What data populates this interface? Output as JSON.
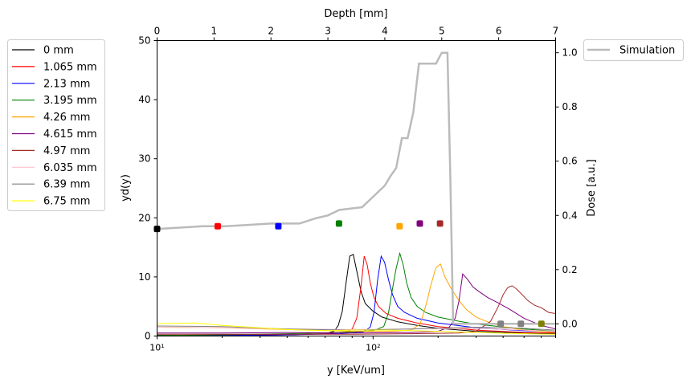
{
  "chart_data": {
    "type": "line",
    "title": "",
    "xlabel": "y [KeV/um]",
    "ylabel": "yd(y)",
    "x_scale": "log",
    "xlim": [
      10,
      700
    ],
    "ylim": [
      0,
      50
    ],
    "x_ticks": [
      10,
      100
    ],
    "x_tick_labels": [
      "10¹",
      "10²"
    ],
    "y_ticks": [
      0,
      10,
      20,
      30,
      40,
      50
    ],
    "top_xlabel": "Depth [mm]",
    "top_xlim": [
      0,
      7
    ],
    "top_ticks": [
      0,
      1,
      2,
      3,
      4,
      5,
      6,
      7
    ],
    "right_ylabel": "Dose [a.u.]",
    "right_ylim": [
      -0.045,
      1.045
    ],
    "right_ticks": [
      0.0,
      0.2,
      0.4,
      0.6,
      0.8,
      1.0
    ],
    "right_tick_labels": [
      "0.0",
      "0.2",
      "0.4",
      "0.6",
      "0.8",
      "1.0"
    ],
    "legend_left_position": "outside-left",
    "legend_right_position": "outside-top-right",
    "series": [
      {
        "name": "0 mm",
        "color": "#000000",
        "depth": 0,
        "dose": 0.35,
        "x": [
          10,
          20,
          40,
          60,
          66,
          69,
          72,
          75,
          78,
          81,
          84,
          88,
          92,
          100,
          110,
          130,
          160,
          200,
          300,
          500,
          700
        ],
        "y": [
          0.1,
          0.1,
          0.2,
          0.4,
          0.8,
          1.8,
          4.2,
          9.0,
          13.5,
          13.8,
          11,
          7.5,
          5.5,
          4.2,
          3.2,
          2.4,
          1.8,
          1.3,
          0.8,
          0.5,
          0.4
        ]
      },
      {
        "name": "1.065 mm",
        "color": "#ff0000",
        "depth": 1.065,
        "dose": 0.36,
        "x": [
          10,
          20,
          40,
          60,
          75,
          80,
          84,
          88,
          91,
          94,
          97,
          101,
          106,
          115,
          130,
          160,
          200,
          300,
          500,
          700
        ],
        "y": [
          0.1,
          0.1,
          0.2,
          0.4,
          0.6,
          1.2,
          3.0,
          8.5,
          13.5,
          12,
          9,
          6.5,
          5.0,
          3.8,
          3.0,
          2.2,
          1.6,
          1.0,
          0.6,
          0.5
        ]
      },
      {
        "name": "2.13 mm",
        "color": "#0000ff",
        "depth": 2.13,
        "dose": 0.36,
        "x": [
          10,
          20,
          40,
          70,
          90,
          97,
          101,
          105,
          109,
          113,
          118,
          123,
          130,
          140,
          160,
          200,
          300,
          500,
          700
        ],
        "y": [
          0.1,
          0.1,
          0.2,
          0.4,
          0.7,
          1.5,
          4.0,
          9.5,
          13.5,
          12.5,
          9.5,
          7.0,
          5.0,
          4.0,
          3.0,
          2.2,
          1.4,
          0.9,
          0.7
        ]
      },
      {
        "name": "3.195 mm",
        "color": "#008000",
        "depth": 3.195,
        "dose": 0.37,
        "x": [
          10,
          20,
          40,
          70,
          100,
          112,
          118,
          123,
          128,
          133,
          138,
          143,
          150,
          160,
          175,
          200,
          250,
          300,
          500,
          700
        ],
        "y": [
          0.1,
          0.2,
          0.4,
          0.6,
          0.9,
          1.6,
          4.0,
          8.0,
          11.5,
          14.0,
          12,
          9,
          6.5,
          5.0,
          4.0,
          3.2,
          2.5,
          2.0,
          1.2,
          0.8
        ]
      },
      {
        "name": "4.26 mm",
        "color": "#ffa500",
        "depth": 4.26,
        "dose": 0.36,
        "x": [
          10,
          20,
          40,
          80,
          120,
          150,
          165,
          175,
          185,
          195,
          205,
          215,
          230,
          250,
          270,
          300,
          350,
          400,
          500,
          700
        ],
        "y": [
          1.5,
          1.4,
          1.1,
          0.8,
          0.8,
          1.0,
          2.0,
          5.0,
          8.5,
          11.5,
          12.2,
          10.0,
          8.0,
          6.0,
          4.5,
          3.2,
          2.2,
          1.6,
          1.0,
          0.6
        ]
      },
      {
        "name": "4.615 mm",
        "color": "#800080",
        "depth": 4.615,
        "dose": 0.37,
        "x": [
          10,
          20,
          40,
          80,
          150,
          200,
          225,
          240,
          250,
          260,
          275,
          290,
          310,
          340,
          380,
          430,
          500,
          600,
          700
        ],
        "y": [
          0.5,
          0.5,
          0.6,
          0.5,
          0.6,
          0.8,
          1.5,
          3.0,
          6.0,
          10.5,
          9.5,
          8.3,
          7.5,
          6.5,
          5.6,
          4.5,
          3.0,
          1.8,
          1.2
        ]
      },
      {
        "name": "4.97 mm",
        "color": "#a52a2a",
        "depth": 4.97,
        "dose": 0.37,
        "x": [
          10,
          30,
          80,
          150,
          250,
          300,
          350,
          380,
          400,
          420,
          440,
          460,
          490,
          520,
          560,
          600,
          650,
          700
        ],
        "y": [
          0.3,
          0.3,
          0.3,
          0.4,
          0.5,
          0.8,
          2.5,
          5.0,
          7.0,
          8.2,
          8.5,
          8.0,
          7.0,
          6.0,
          5.2,
          4.8,
          4.0,
          3.8
        ]
      },
      {
        "name": "6.035 mm",
        "color": "#ffc0cb",
        "depth": 6.035,
        "dose": 0.0,
        "x": [
          10,
          20,
          40,
          80,
          150,
          300,
          500,
          700
        ],
        "y": [
          1.5,
          1.4,
          1.2,
          1.1,
          1.2,
          1.3,
          1.0,
          0.8
        ]
      },
      {
        "name": "6.39 mm",
        "color": "#808080",
        "depth": 6.39,
        "dose": 0.0,
        "x": [
          10,
          20,
          40,
          80,
          150,
          300,
          500,
          700
        ],
        "y": [
          1.7,
          1.6,
          1.2,
          1.0,
          1.2,
          1.5,
          1.3,
          1.0
        ]
      },
      {
        "name": "6.75 mm",
        "color": "#ffff00",
        "depth": 6.75,
        "dose": 0.0,
        "x": [
          10,
          15,
          20,
          30,
          40,
          60,
          80,
          120,
          200,
          300,
          500,
          700
        ],
        "y": [
          2.1,
          2.2,
          1.8,
          1.4,
          1.1,
          0.9,
          1.0,
          1.0,
          0.8,
          0.6,
          0.4,
          0.3
        ]
      }
    ],
    "simulation": {
      "name": "Simulation",
      "color": "#bbbbbb",
      "depth": [
        0,
        0.4,
        0.8,
        1.2,
        1.6,
        2.0,
        2.4,
        2.5,
        2.8,
        3.0,
        3.2,
        3.4,
        3.6,
        3.8,
        3.9,
        4.0,
        4.1,
        4.2,
        4.3,
        4.4,
        4.5,
        4.6,
        4.7,
        4.8,
        4.9,
        4.95,
        5.0,
        5.05,
        5.1,
        5.15,
        5.2,
        7.0
      ],
      "dose": [
        0.35,
        0.355,
        0.36,
        0.36,
        0.365,
        0.37,
        0.37,
        0.37,
        0.39,
        0.4,
        0.42,
        0.425,
        0.43,
        0.47,
        0.49,
        0.51,
        0.545,
        0.575,
        0.685,
        0.685,
        0.78,
        0.96,
        0.96,
        0.96,
        0.96,
        0.98,
        1.0,
        1.0,
        1.0,
        0.55,
        0.0,
        0.0
      ]
    }
  }
}
